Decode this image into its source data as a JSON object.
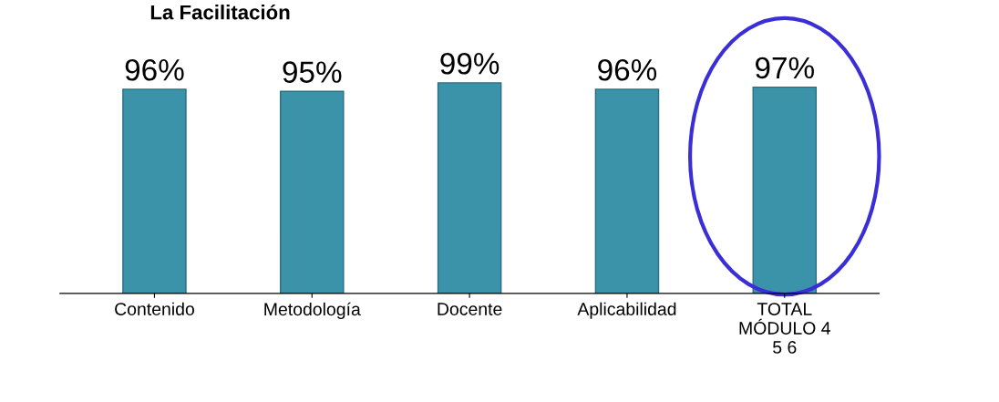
{
  "chart_data": {
    "type": "bar",
    "title": "La Facilitación",
    "categories": [
      "Contenido",
      "Metodología",
      "Docente",
      "Aplicabilidad",
      "TOTAL\nMÓDULO 4\n5 6"
    ],
    "values": [
      96,
      95,
      99,
      96,
      97
    ],
    "value_labels": [
      "96%",
      "95%",
      "99%",
      "96%",
      "97%"
    ],
    "color": "#3a93a8",
    "grid": false,
    "legend": false
  }
}
